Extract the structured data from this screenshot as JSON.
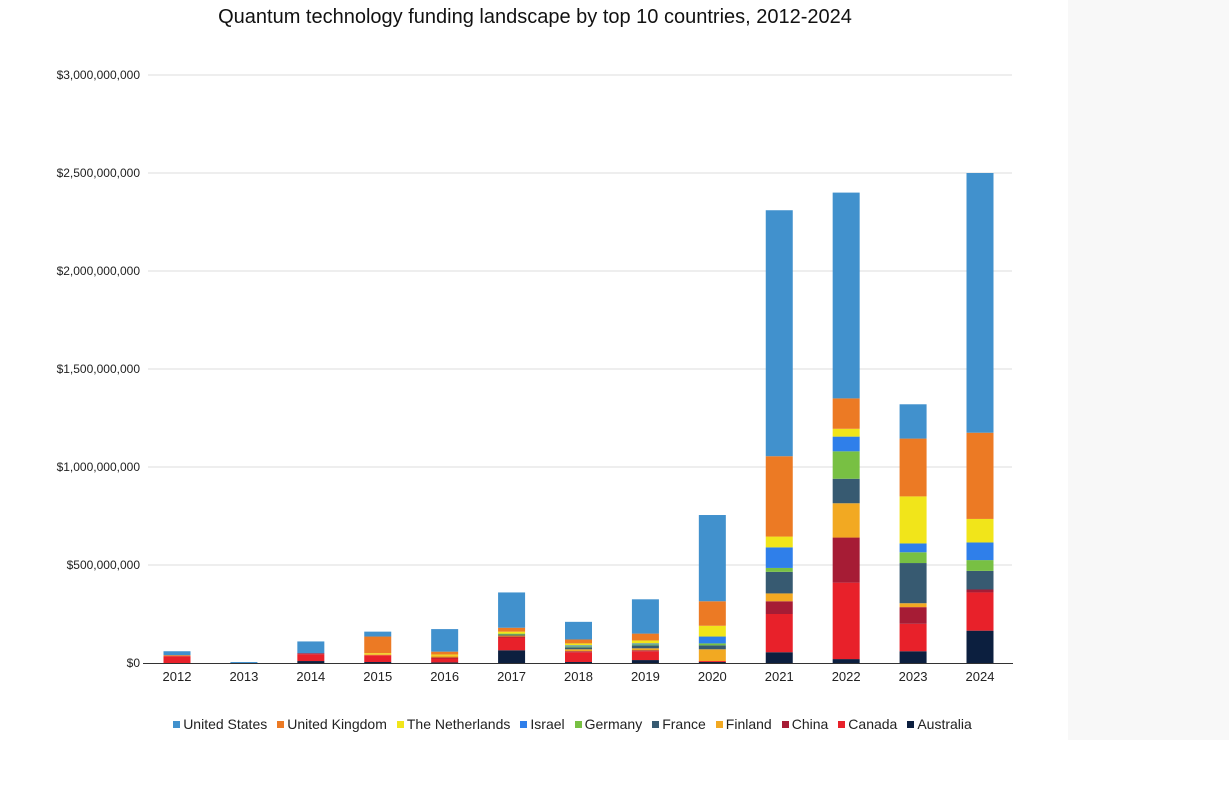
{
  "chart_data": {
    "type": "bar",
    "stacked": true,
    "title": "Quantum technology funding landscape by top 10 countries, 2012-2024",
    "xlabel": "",
    "ylabel": "",
    "ylim": [
      0,
      3000000000
    ],
    "yticks": [
      0,
      500000000,
      1000000000,
      1500000000,
      2000000000,
      2500000000,
      3000000000
    ],
    "ytick_labels": [
      "$0",
      "$500,000,000",
      "$1,000,000,000",
      "$1,500,000,000",
      "$2,000,000,000",
      "$2,500,000,000",
      "$3,000,000,000"
    ],
    "grid": true,
    "legend_position": "bottom",
    "categories": [
      "2012",
      "2013",
      "2014",
      "2015",
      "2016",
      "2017",
      "2018",
      "2019",
      "2020",
      "2021",
      "2022",
      "2023",
      "2024"
    ],
    "series": [
      {
        "name": "Australia",
        "color": "#0c1f3f",
        "values": [
          0,
          0,
          10000000,
          5000000,
          3000000,
          65000000,
          5000000,
          15000000,
          5000000,
          55000000,
          20000000,
          60000000,
          165000000
        ]
      },
      {
        "name": "Canada",
        "color": "#e8212a",
        "values": [
          35000000,
          0,
          35000000,
          35000000,
          20000000,
          65000000,
          50000000,
          45000000,
          5000000,
          195000000,
          390000000,
          140000000,
          195000000
        ]
      },
      {
        "name": "China",
        "color": "#a61c35",
        "values": [
          0,
          0,
          5000000,
          0,
          5000000,
          5000000,
          5000000,
          5000000,
          0,
          65000000,
          230000000,
          85000000,
          15000000
        ]
      },
      {
        "name": "Finland",
        "color": "#f2a922",
        "values": [
          0,
          0,
          0,
          5000000,
          10000000,
          5000000,
          10000000,
          10000000,
          60000000,
          40000000,
          175000000,
          20000000,
          0
        ]
      },
      {
        "name": "France",
        "color": "#375a71",
        "values": [
          0,
          0,
          0,
          0,
          0,
          5000000,
          10000000,
          15000000,
          20000000,
          110000000,
          125000000,
          205000000,
          95000000
        ]
      },
      {
        "name": "Germany",
        "color": "#78c043",
        "values": [
          0,
          0,
          0,
          0,
          0,
          5000000,
          5000000,
          5000000,
          10000000,
          20000000,
          140000000,
          55000000,
          55000000
        ]
      },
      {
        "name": "Israel",
        "color": "#2f7fea",
        "values": [
          0,
          0,
          0,
          0,
          0,
          0,
          5000000,
          5000000,
          35000000,
          105000000,
          75000000,
          45000000,
          90000000
        ]
      },
      {
        "name": "The Netherlands",
        "color": "#f1e51a",
        "values": [
          0,
          0,
          0,
          5000000,
          5000000,
          10000000,
          10000000,
          15000000,
          55000000,
          55000000,
          40000000,
          240000000,
          120000000
        ]
      },
      {
        "name": "United Kingdom",
        "color": "#ec7a24",
        "values": [
          5000000,
          0,
          0,
          85000000,
          15000000,
          20000000,
          20000000,
          35000000,
          125000000,
          410000000,
          155000000,
          295000000,
          440000000
        ]
      },
      {
        "name": "United States",
        "color": "#4191cd",
        "values": [
          20000000,
          5000000,
          60000000,
          25000000,
          115000000,
          180000000,
          90000000,
          175000000,
          440000000,
          1255000000,
          1050000000,
          175000000,
          1325000000
        ]
      }
    ]
  },
  "legend": {
    "items": [
      {
        "label": "United States",
        "color": "#4191cd"
      },
      {
        "label": "United Kingdom",
        "color": "#ec7a24"
      },
      {
        "label": "The Netherlands",
        "color": "#f1e51a"
      },
      {
        "label": "Israel",
        "color": "#2f7fea"
      },
      {
        "label": "Germany",
        "color": "#78c043"
      },
      {
        "label": "France",
        "color": "#375a71"
      },
      {
        "label": "Finland",
        "color": "#f2a922"
      },
      {
        "label": "China",
        "color": "#a61c35"
      },
      {
        "label": "Canada",
        "color": "#e8212a"
      },
      {
        "label": "Australia",
        "color": "#0c1f3f"
      }
    ]
  }
}
